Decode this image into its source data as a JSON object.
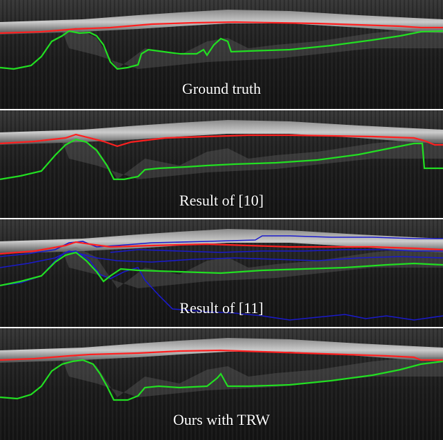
{
  "panels": [
    {
      "caption": "Ground truth",
      "red_color": "#ff2020",
      "green_color": "#22e022",
      "blue_color": "#1a1acc"
    },
    {
      "caption": "Result of [10]"
    },
    {
      "caption": "Result of [11]"
    },
    {
      "caption": "Ours with TRW"
    }
  ]
}
